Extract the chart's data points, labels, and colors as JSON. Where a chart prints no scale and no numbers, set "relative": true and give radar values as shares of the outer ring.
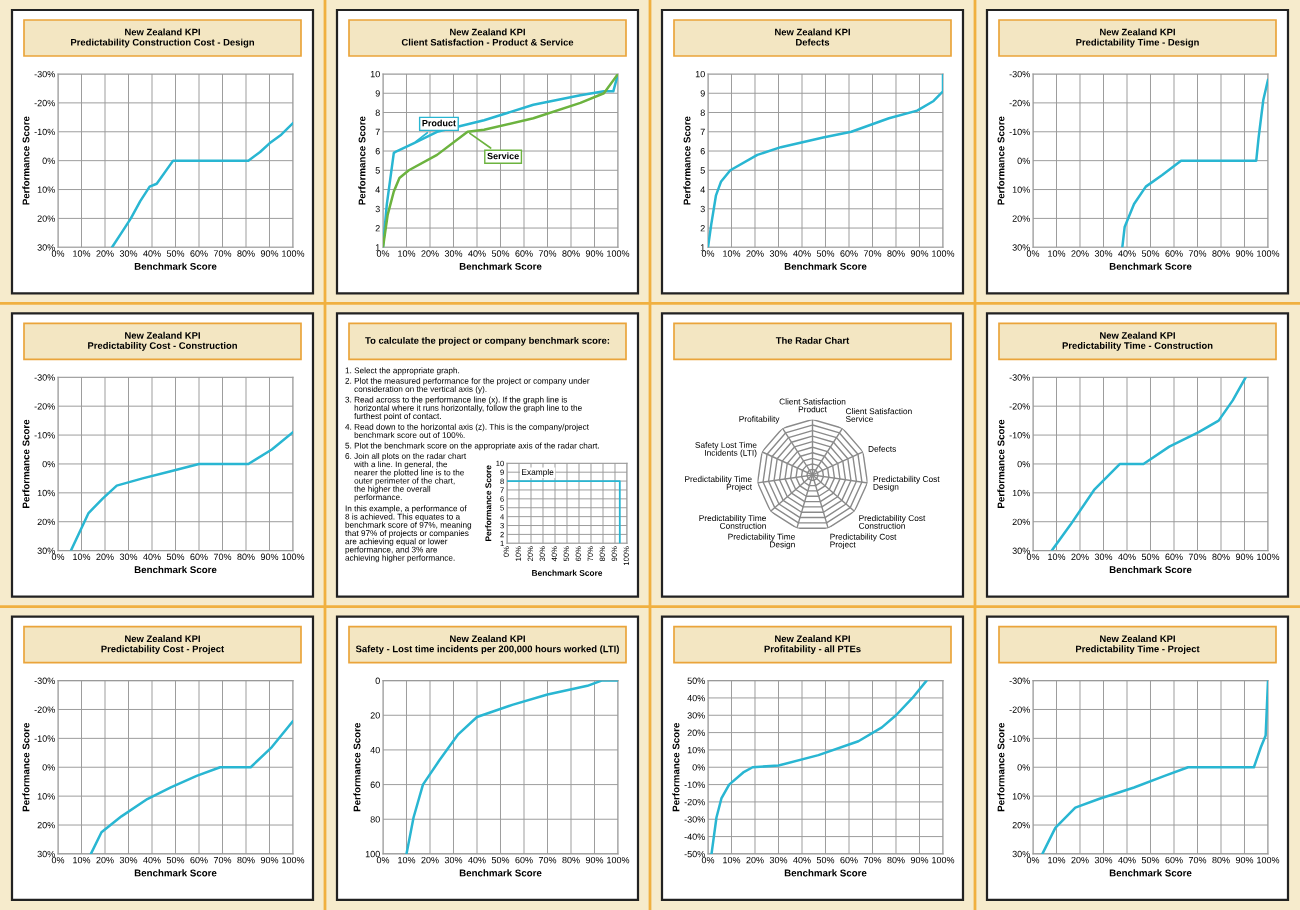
{
  "chart_data": [
    {
      "type": "line",
      "title": "New Zealand KPI\nPredictability Construction Cost - Design",
      "xlabel": "Benchmark Score",
      "ylabel": "Performance Score",
      "grid": true,
      "x": [
        23,
        27,
        31,
        35,
        39,
        42,
        49,
        81,
        86,
        90,
        95,
        100
      ],
      "series": [
        {
          "color": "#29b6d2",
          "values": [
            30,
            25,
            20,
            14,
            9,
            8,
            0,
            0,
            -3,
            -6,
            -9,
            -13
          ]
        }
      ],
      "xlim": [
        0,
        100
      ],
      "xticks": [
        {
          "value": 0,
          "label": "0%"
        },
        {
          "value": 10,
          "label": "10%"
        },
        {
          "value": 20,
          "label": "20%"
        },
        {
          "value": 30,
          "label": "30%"
        },
        {
          "value": 40,
          "label": "40%"
        },
        {
          "value": 50,
          "label": "50%"
        },
        {
          "value": 60,
          "label": "60%"
        },
        {
          "value": 70,
          "label": "70%"
        },
        {
          "value": 80,
          "label": "80%"
        },
        {
          "value": 90,
          "label": "90%"
        },
        {
          "value": 100,
          "label": "100%"
        }
      ],
      "ylim": [
        30,
        -30
      ],
      "yticks": [
        {
          "value": -30,
          "label": "-30%"
        },
        {
          "value": -20,
          "label": "-20%"
        },
        {
          "value": -10,
          "label": "-10%"
        },
        {
          "value": 0,
          "label": "0%"
        },
        {
          "value": 10,
          "label": "10%"
        },
        {
          "value": 20,
          "label": "20%"
        },
        {
          "value": 30,
          "label": "30%"
        }
      ]
    },
    {
      "type": "line",
      "title": "New Zealand KPI\nClient Satisfaction - Product & Service",
      "xlabel": "Benchmark Score",
      "ylabel": "Performance Score",
      "grid": true,
      "series": [
        {
          "name": "Product",
          "color": "#29b6d2",
          "x": [
            0,
            1.6,
            4.6,
            6,
            13,
            23,
            43,
            64,
            84,
            94,
            98,
            100
          ],
          "values": [
            1,
            3.2,
            5.9,
            6,
            6.4,
            7,
            7.6,
            8.4,
            8.9,
            9.1,
            9.1,
            10
          ]
        },
        {
          "name": "Service",
          "color": "#6cb33f",
          "x": [
            0,
            2,
            4.6,
            7,
            11,
            23,
            36,
            43,
            64,
            84,
            94,
            100
          ],
          "values": [
            1,
            2.7,
            3.9,
            4.6,
            5,
            5.8,
            7,
            7.1,
            7.7,
            8.5,
            9,
            10
          ]
        }
      ],
      "xlim": [
        0,
        100
      ],
      "xticks": [
        {
          "value": 0,
          "label": "0%"
        },
        {
          "value": 10,
          "label": "10%"
        },
        {
          "value": 20,
          "label": "20%"
        },
        {
          "value": 30,
          "label": "30%"
        },
        {
          "value": 40,
          "label": "40%"
        },
        {
          "value": 50,
          "label": "50%"
        },
        {
          "value": 60,
          "label": "60%"
        },
        {
          "value": 70,
          "label": "70%"
        },
        {
          "value": 80,
          "label": "80%"
        },
        {
          "value": 90,
          "label": "90%"
        },
        {
          "value": 100,
          "label": "100%"
        }
      ],
      "ylim": [
        1,
        10
      ],
      "yticks": [
        1,
        2,
        3,
        4,
        5,
        6,
        7,
        8,
        9,
        10
      ]
    },
    {
      "type": "line",
      "title": "New Zealand KPI\nDefects",
      "xlabel": "Benchmark Score",
      "ylabel": "Performance Score",
      "grid": true,
      "x": [
        0,
        1.4,
        3.4,
        5.5,
        9.5,
        21,
        31,
        49,
        61,
        77,
        89,
        96,
        100,
        100
      ],
      "series": [
        {
          "color": "#29b6d2",
          "values": [
            1,
            2.2,
            3.7,
            4.4,
            5,
            5.8,
            6.2,
            6.7,
            7,
            7.7,
            8.1,
            8.6,
            9.1,
            10
          ]
        }
      ],
      "xlim": [
        0,
        100
      ],
      "xticks": [
        {
          "value": 0,
          "label": "0%"
        },
        {
          "value": 10,
          "label": "10%"
        },
        {
          "value": 20,
          "label": "20%"
        },
        {
          "value": 30,
          "label": "30%"
        },
        {
          "value": 40,
          "label": "40%"
        },
        {
          "value": 50,
          "label": "50%"
        },
        {
          "value": 60,
          "label": "60%"
        },
        {
          "value": 70,
          "label": "70%"
        },
        {
          "value": 80,
          "label": "80%"
        },
        {
          "value": 90,
          "label": "90%"
        },
        {
          "value": 100,
          "label": "100%"
        }
      ],
      "ylim": [
        1,
        10
      ],
      "yticks": [
        1,
        2,
        3,
        4,
        5,
        6,
        7,
        8,
        9,
        10
      ]
    },
    {
      "type": "line",
      "title": "New Zealand KPI\nPredictability Time - Design",
      "xlabel": "Benchmark Score",
      "ylabel": "Performance Score",
      "grid": true,
      "x": [
        38,
        39,
        43,
        48,
        55,
        63,
        79,
        95,
        96,
        98,
        100
      ],
      "series": [
        {
          "color": "#29b6d2",
          "values": [
            30,
            23,
            15,
            9,
            5,
            0,
            0,
            0,
            -8,
            -21,
            -28
          ]
        }
      ],
      "xlim": [
        0,
        100
      ],
      "xticks": [
        {
          "value": 0,
          "label": "0%"
        },
        {
          "value": 10,
          "label": "10%"
        },
        {
          "value": 20,
          "label": "20%"
        },
        {
          "value": 30,
          "label": "30%"
        },
        {
          "value": 40,
          "label": "40%"
        },
        {
          "value": 50,
          "label": "50%"
        },
        {
          "value": 60,
          "label": "60%"
        },
        {
          "value": 70,
          "label": "70%"
        },
        {
          "value": 80,
          "label": "80%"
        },
        {
          "value": 90,
          "label": "90%"
        },
        {
          "value": 100,
          "label": "100%"
        }
      ],
      "ylim": [
        30,
        -30
      ],
      "yticks": [
        {
          "value": -30,
          "label": "-30%"
        },
        {
          "value": -20,
          "label": "-20%"
        },
        {
          "value": -10,
          "label": "-10%"
        },
        {
          "value": 0,
          "label": "0%"
        },
        {
          "value": 10,
          "label": "10%"
        },
        {
          "value": 20,
          "label": "20%"
        },
        {
          "value": 30,
          "label": "30%"
        }
      ]
    },
    {
      "type": "line",
      "title": "New Zealand KPI\nPredictability Cost - Construction",
      "xlabel": "Benchmark Score",
      "ylabel": "Performance Score",
      "grid": true,
      "x": [
        5.5,
        13,
        19,
        25,
        36,
        48,
        60,
        81,
        91,
        100
      ],
      "series": [
        {
          "color": "#29b6d2",
          "values": [
            30,
            17,
            12,
            7.5,
            5,
            2.5,
            0,
            0,
            -5,
            -11
          ]
        }
      ],
      "xlim": [
        0,
        100
      ],
      "xticks": [
        {
          "value": 0,
          "label": "0%"
        },
        {
          "value": 10,
          "label": "10%"
        },
        {
          "value": 20,
          "label": "20%"
        },
        {
          "value": 30,
          "label": "30%"
        },
        {
          "value": 40,
          "label": "40%"
        },
        {
          "value": 50,
          "label": "50%"
        },
        {
          "value": 60,
          "label": "60%"
        },
        {
          "value": 70,
          "label": "70%"
        },
        {
          "value": 80,
          "label": "80%"
        },
        {
          "value": 90,
          "label": "90%"
        },
        {
          "value": 100,
          "label": "100%"
        }
      ],
      "ylim": [
        30,
        -30
      ],
      "yticks": [
        {
          "value": -30,
          "label": "-30%"
        },
        {
          "value": -20,
          "label": "-20%"
        },
        {
          "value": -10,
          "label": "-10%"
        },
        {
          "value": 0,
          "label": "0%"
        },
        {
          "value": 10,
          "label": "10%"
        },
        {
          "value": 20,
          "label": "20%"
        },
        {
          "value": 30,
          "label": "30%"
        }
      ]
    },
    {
      "type": "other",
      "title": "To calculate the project or company benchmark score:",
      "annotations": [
        "1. Select the appropriate graph.",
        "2. Plot the measured performance for the project or company under\n    consideration on the vertical axis (y).",
        "3. Read across to the performance line (x). If the graph line is\n    horizontal where it runs horizontally, follow the graph line to the\n    furthest point of contact.",
        "4. Read down to the horizontal axis (z). This is the company/project\n    benchmark score out of 100%.",
        "5. Plot the benchmark score on the appropriate axis of the radar chart.",
        "6. Join all plots on the radar chart\n    with a line. In general, the\n    nearer the plotted line is to the\n    outer perimeter of the chart,\n    the higher the overall\n    performance.",
        "In this example, a performance of\n8 is achieved. This equates to a\nbenchmark score of 97%, meaning\nthat 97% of projects or companies\nare achieving equal or lower\nperformance, and 3% are\nachieving higher performance."
      ]
    },
    {
      "type": "line",
      "xlabel": "Benchmark Score",
      "ylabel": "Performance Score",
      "grid": true,
      "annotations": [
        "Example"
      ],
      "x": [
        0,
        94,
        94
      ],
      "series": [
        {
          "color": "#29b6d2",
          "values": [
            8,
            8,
            1
          ]
        }
      ],
      "xlim": [
        0,
        100
      ],
      "xticks": [
        {
          "value": 0,
          "label": "0%"
        },
        {
          "value": 10,
          "label": "10%"
        },
        {
          "value": 20,
          "label": "20%"
        },
        {
          "value": 30,
          "label": "30%"
        },
        {
          "value": 40,
          "label": "40%"
        },
        {
          "value": 50,
          "label": "50%"
        },
        {
          "value": 60,
          "label": "60%"
        },
        {
          "value": 70,
          "label": "70%"
        },
        {
          "value": 80,
          "label": "80%"
        },
        {
          "value": 90,
          "label": "90%"
        },
        {
          "value": 100,
          "label": "100%"
        }
      ],
      "ylim": [
        1,
        10
      ],
      "yticks": [
        1,
        2,
        3,
        4,
        5,
        6,
        7,
        8,
        9,
        10
      ]
    },
    {
      "type": "radar",
      "title": "The Radar Chart",
      "relative": true,
      "categories": [
        "Client Satisfaction\nProduct",
        "Client Satisfaction\nService",
        "Defects",
        "Predictability Cost\nDesign",
        "Predictability Cost\nConstruction",
        "Predictability Cost\nProject",
        "Predictability Time\nDesign",
        "Predictability Time\nConstruction",
        "Predictability Time\nProject",
        "Safety Lost Time\nIncidents (LTI)",
        "Profitability"
      ]
    },
    {
      "type": "line",
      "title": "New Zealand KPI\nPredictability Time - Construction",
      "xlabel": "Benchmark Score",
      "ylabel": "Performance Score",
      "grid": true,
      "x": [
        8,
        16,
        26,
        37,
        47,
        58,
        70.5,
        79,
        85,
        90.5
      ],
      "series": [
        {
          "color": "#29b6d2",
          "values": [
            30,
            21,
            9,
            0,
            0,
            -6,
            -11,
            -15,
            -22,
            -30
          ]
        }
      ],
      "xlim": [
        0,
        100
      ],
      "xticks": [
        {
          "value": 0,
          "label": "0%"
        },
        {
          "value": 10,
          "label": "10%"
        },
        {
          "value": 20,
          "label": "20%"
        },
        {
          "value": 30,
          "label": "30%"
        },
        {
          "value": 40,
          "label": "40%"
        },
        {
          "value": 50,
          "label": "50%"
        },
        {
          "value": 60,
          "label": "60%"
        },
        {
          "value": 70,
          "label": "70%"
        },
        {
          "value": 80,
          "label": "80%"
        },
        {
          "value": 90,
          "label": "90%"
        },
        {
          "value": 100,
          "label": "100%"
        }
      ],
      "ylim": [
        30,
        -30
      ],
      "yticks": [
        {
          "value": -30,
          "label": "-30%"
        },
        {
          "value": -20,
          "label": "-20%"
        },
        {
          "value": -10,
          "label": "-10%"
        },
        {
          "value": 0,
          "label": "0%"
        },
        {
          "value": 10,
          "label": "10%"
        },
        {
          "value": 20,
          "label": "20%"
        },
        {
          "value": 30,
          "label": "30%"
        }
      ]
    },
    {
      "type": "line",
      "title": "New Zealand KPI\nPredictability Cost - Project",
      "xlabel": "Benchmark Score",
      "ylabel": "Performance Score",
      "grid": true,
      "x": [
        14,
        18.5,
        27,
        38,
        48,
        59,
        69,
        82,
        91,
        100
      ],
      "series": [
        {
          "color": "#29b6d2",
          "values": [
            30,
            22.5,
            17,
            11,
            7,
            3,
            0,
            0,
            -7,
            -16
          ]
        }
      ],
      "xlim": [
        0,
        100
      ],
      "xticks": [
        {
          "value": 0,
          "label": "0%"
        },
        {
          "value": 10,
          "label": "10%"
        },
        {
          "value": 20,
          "label": "20%"
        },
        {
          "value": 30,
          "label": "30%"
        },
        {
          "value": 40,
          "label": "40%"
        },
        {
          "value": 50,
          "label": "50%"
        },
        {
          "value": 60,
          "label": "60%"
        },
        {
          "value": 70,
          "label": "70%"
        },
        {
          "value": 80,
          "label": "80%"
        },
        {
          "value": 90,
          "label": "90%"
        },
        {
          "value": 100,
          "label": "100%"
        }
      ],
      "ylim": [
        30,
        -30
      ],
      "yticks": [
        {
          "value": -30,
          "label": "-30%"
        },
        {
          "value": -20,
          "label": "-20%"
        },
        {
          "value": -10,
          "label": "-10%"
        },
        {
          "value": 0,
          "label": "0%"
        },
        {
          "value": 10,
          "label": "10%"
        },
        {
          "value": 20,
          "label": "20%"
        },
        {
          "value": 30,
          "label": "30%"
        }
      ]
    },
    {
      "type": "line",
      "title": "New Zealand KPI\nSafety - Lost time incidents per 200,000 hours worked (LTI)",
      "xlabel": "Benchmark Score",
      "ylabel": "Performance Score",
      "grid": true,
      "x": [
        10,
        13,
        17,
        24,
        32,
        40,
        55,
        70,
        87,
        93,
        100
      ],
      "series": [
        {
          "color": "#29b6d2",
          "values": [
            100,
            79,
            60,
            46,
            31,
            21,
            14,
            8,
            3,
            0,
            0
          ]
        }
      ],
      "xlim": [
        0,
        100
      ],
      "xticks": [
        {
          "value": 0,
          "label": "0%"
        },
        {
          "value": 10,
          "label": "10%"
        },
        {
          "value": 20,
          "label": "20%"
        },
        {
          "value": 30,
          "label": "30%"
        },
        {
          "value": 40,
          "label": "40%"
        },
        {
          "value": 50,
          "label": "50%"
        },
        {
          "value": 60,
          "label": "60%"
        },
        {
          "value": 70,
          "label": "70%"
        },
        {
          "value": 80,
          "label": "80%"
        },
        {
          "value": 90,
          "label": "90%"
        },
        {
          "value": 100,
          "label": "100%"
        }
      ],
      "ylim": [
        100,
        0
      ],
      "yticks": [
        0,
        20,
        40,
        60,
        80,
        100
      ]
    },
    {
      "type": "line",
      "title": "New Zealand KPI\nProfitability - all PTEs",
      "xlabel": "Benchmark Score",
      "ylabel": "Performance Score",
      "grid": true,
      "x": [
        1.5,
        3.6,
        5.7,
        9,
        15,
        19,
        30,
        47,
        64,
        74,
        80,
        87,
        93
      ],
      "series": [
        {
          "color": "#29b6d2",
          "values": [
            -50,
            -29,
            -18,
            -10,
            -3,
            0,
            1,
            7,
            15,
            23,
            30,
            40,
            50
          ]
        }
      ],
      "xlim": [
        0,
        100
      ],
      "xticks": [
        {
          "value": 0,
          "label": "0%"
        },
        {
          "value": 10,
          "label": "10%"
        },
        {
          "value": 20,
          "label": "20%"
        },
        {
          "value": 30,
          "label": "30%"
        },
        {
          "value": 40,
          "label": "40%"
        },
        {
          "value": 50,
          "label": "50%"
        },
        {
          "value": 60,
          "label": "60%"
        },
        {
          "value": 70,
          "label": "70%"
        },
        {
          "value": 80,
          "label": "80%"
        },
        {
          "value": 90,
          "label": "90%"
        },
        {
          "value": 100,
          "label": "100%"
        }
      ],
      "ylim": [
        -50,
        50
      ],
      "yticks": [
        {
          "value": -50,
          "label": "-50%"
        },
        {
          "value": -40,
          "label": "-40%"
        },
        {
          "value": -30,
          "label": "-30%"
        },
        {
          "value": -20,
          "label": "-20%"
        },
        {
          "value": -10,
          "label": "-10%"
        },
        {
          "value": 0,
          "label": "0%"
        },
        {
          "value": 10,
          "label": "10%"
        },
        {
          "value": 20,
          "label": "20%"
        },
        {
          "value": 30,
          "label": "30%"
        },
        {
          "value": 40,
          "label": "40%"
        },
        {
          "value": 50,
          "label": "50%"
        }
      ]
    },
    {
      "type": "line",
      "title": "New Zealand KPI\nPredictability Time - Project",
      "xlabel": "Benchmark Score",
      "ylabel": "Performance Score",
      "grid": true,
      "x": [
        4,
        9.5,
        18,
        28,
        43,
        56,
        66,
        94,
        97,
        99,
        100
      ],
      "series": [
        {
          "color": "#29b6d2",
          "values": [
            30,
            21,
            14,
            11,
            7,
            3,
            0,
            0,
            -7,
            -11,
            -30
          ]
        }
      ],
      "xlim": [
        0,
        100
      ],
      "xticks": [
        {
          "value": 0,
          "label": "0%"
        },
        {
          "value": 10,
          "label": "10%"
        },
        {
          "value": 20,
          "label": "20%"
        },
        {
          "value": 30,
          "label": "30%"
        },
        {
          "value": 40,
          "label": "40%"
        },
        {
          "value": 50,
          "label": "50%"
        },
        {
          "value": 60,
          "label": "60%"
        },
        {
          "value": 70,
          "label": "70%"
        },
        {
          "value": 80,
          "label": "80%"
        },
        {
          "value": 90,
          "label": "90%"
        },
        {
          "value": 100,
          "label": "100%"
        }
      ],
      "ylim": [
        30,
        -30
      ],
      "yticks": [
        {
          "value": -30,
          "label": "-30%"
        },
        {
          "value": -20,
          "label": "-20%"
        },
        {
          "value": -10,
          "label": "-10%"
        },
        {
          "value": 0,
          "label": "0%"
        },
        {
          "value": 10,
          "label": "10%"
        },
        {
          "value": 20,
          "label": "20%"
        },
        {
          "value": 30,
          "label": "30%"
        }
      ]
    }
  ]
}
